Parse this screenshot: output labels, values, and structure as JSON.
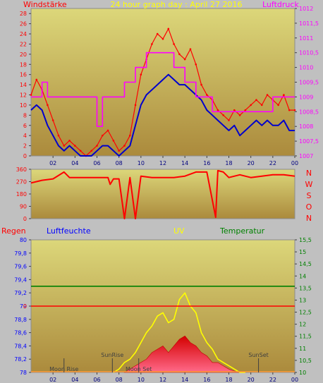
{
  "colors": {
    "background": "#c0c0c0",
    "plot_top": "#dcd77a",
    "plot_bottom": "#ab8a3c",
    "wind_speed": "#ff0000",
    "wind_avg": "#0000cc",
    "pressure": "#ff00ff",
    "direction": "#ff0000",
    "rain": "#ff0000",
    "humidity": "#0000ff",
    "uv": "#ffff00",
    "temperature": "#008000",
    "sun_marker": "#404040"
  },
  "chart_data": [
    {
      "type": "line",
      "id": "wind-pressure",
      "header": {
        "left_label": "Windstärke",
        "title": "24 hour graph day : April 27 2016",
        "right_label": "Luftdruck"
      },
      "x_ticks": [
        "02",
        "04",
        "06",
        "08",
        "10",
        "12",
        "14",
        "16",
        "18",
        "20",
        "22",
        "00"
      ],
      "x_range": [
        0,
        24
      ],
      "y_left": {
        "range": [
          0,
          29
        ],
        "ticks": [
          "0",
          "2",
          "4",
          "6",
          "8",
          "10",
          "12",
          "14",
          "16",
          "18",
          "20",
          "22",
          "24",
          "26",
          "28"
        ]
      },
      "y_right": {
        "range": [
          1007,
          1012
        ],
        "ticks": [
          "1007",
          "1007,5",
          "1008",
          "1008,5",
          "1009",
          "1009,5",
          "1010",
          "1010,5",
          "1011",
          "1011,5",
          "1012"
        ]
      },
      "series": [
        {
          "role": "wind_speed",
          "axis": "left",
          "x": [
            0,
            0.5,
            1,
            1.5,
            2,
            2.5,
            3,
            3.5,
            4,
            4.5,
            5,
            5.5,
            6,
            6.5,
            7,
            7.5,
            8,
            8.5,
            9,
            9.5,
            10,
            10.5,
            11,
            11.5,
            12,
            12.5,
            13,
            13.5,
            14,
            14.5,
            15,
            15.5,
            16,
            16.5,
            17,
            17.5,
            18,
            18.5,
            19,
            19.5,
            20,
            20.5,
            21,
            21.5,
            22,
            22.5,
            23,
            23.5,
            24
          ],
          "values": [
            12,
            15,
            13,
            10,
            7,
            4,
            2,
            3,
            2,
            1,
            0,
            1,
            2,
            4,
            5,
            3,
            1,
            2,
            4,
            10,
            16,
            19,
            22,
            24,
            23,
            25,
            22,
            20,
            19,
            21,
            18,
            14,
            12,
            11,
            9,
            8,
            7,
            9,
            8,
            9,
            10,
            11,
            10,
            12,
            11,
            10,
            12,
            9,
            9
          ]
        },
        {
          "role": "wind_avg",
          "axis": "left",
          "x": [
            0,
            0.5,
            1,
            1.5,
            2,
            2.5,
            3,
            3.5,
            4,
            4.5,
            5,
            5.5,
            6,
            6.5,
            7,
            7.5,
            8,
            8.5,
            9,
            9.5,
            10,
            10.5,
            11,
            11.5,
            12,
            12.5,
            13,
            13.5,
            14,
            14.5,
            15,
            15.5,
            16,
            16.5,
            17,
            17.5,
            18,
            18.5,
            19,
            19.5,
            20,
            20.5,
            21,
            21.5,
            22,
            22.5,
            23,
            23.5,
            24
          ],
          "values": [
            9,
            10,
            9,
            6,
            4,
            2,
            1,
            2,
            1,
            0,
            0,
            0,
            1,
            2,
            2,
            1,
            0,
            1,
            2,
            6,
            10,
            12,
            13,
            14,
            15,
            16,
            15,
            14,
            14,
            13,
            12,
            11,
            9,
            8,
            7,
            6,
            5,
            6,
            4,
            5,
            6,
            7,
            6,
            7,
            6,
            6,
            7,
            5,
            5
          ]
        },
        {
          "role": "pressure",
          "axis": "right",
          "x": [
            0,
            1,
            1,
            1.5,
            1.5,
            3,
            6,
            6,
            6.5,
            6.5,
            8.5,
            8.5,
            9.5,
            9.5,
            10.5,
            10.5,
            13,
            13,
            14,
            14,
            15,
            15,
            16.5,
            16.5,
            22,
            22,
            24
          ],
          "values": [
            1009,
            1009,
            1009.5,
            1009.5,
            1009,
            1009,
            1009,
            1008,
            1008,
            1009,
            1009,
            1009.5,
            1009.5,
            1010,
            1010,
            1010.5,
            1010.5,
            1010,
            1010,
            1009.5,
            1009.5,
            1009,
            1009,
            1008.5,
            1008.5,
            1009,
            1009
          ]
        }
      ]
    },
    {
      "type": "line",
      "id": "wind-direction",
      "x_range": [
        0,
        24
      ],
      "y_left": {
        "range": [
          0,
          360
        ],
        "ticks": [
          "0",
          "90",
          "180",
          "270",
          "360"
        ]
      },
      "compass": [
        "N",
        "W",
        "S",
        "O",
        "N"
      ],
      "series": [
        {
          "role": "direction",
          "x": [
            0,
            1,
            2,
            3,
            3.5,
            4,
            5,
            6,
            7,
            7.2,
            7.5,
            8,
            8.5,
            9,
            9.5,
            10,
            11,
            12,
            13,
            14,
            15,
            16,
            16.8,
            17,
            17.5,
            18,
            19,
            20,
            21,
            22,
            23,
            24
          ],
          "values": [
            260,
            280,
            290,
            340,
            300,
            300,
            300,
            300,
            300,
            250,
            290,
            290,
            0,
            300,
            0,
            310,
            300,
            300,
            300,
            310,
            340,
            340,
            10,
            350,
            340,
            300,
            320,
            300,
            310,
            320,
            320,
            310
          ]
        }
      ]
    },
    {
      "type": "area",
      "id": "rain-humidity-uv-temp",
      "header": {
        "rain": "Regen",
        "humidity": "Luftfeuchte",
        "uv": "UV",
        "temperature": "Temperatur"
      },
      "y_left": {
        "range": [
          78,
          80
        ],
        "ticks": [
          "78",
          "78,2",
          "78,4",
          "78,6",
          "78,8",
          "79",
          "79,2",
          "79,4",
          "79,6",
          "79,8",
          "80"
        ]
      },
      "y_right": {
        "range": [
          10,
          15.5
        ],
        "ticks": [
          "10",
          "10,5",
          "11",
          "11,5",
          "12",
          "12,5",
          "13",
          "13,5",
          "14",
          "14,5",
          "15",
          "15,5"
        ]
      },
      "rain_zero_label": "0",
      "rain_level": 79,
      "humidity_level": 79.3,
      "uv_zero": 78,
      "events": [
        {
          "label": "Moon Rise",
          "x": 3.0
        },
        {
          "label": "SunRise",
          "x": 7.4
        },
        {
          "label": "Moon Set",
          "x": 9.8
        },
        {
          "label": "SunSet",
          "x": 20.7
        }
      ],
      "x_ticks": [
        "02",
        "04",
        "06",
        "08",
        "10",
        "12",
        "14",
        "16",
        "18",
        "20",
        "22",
        "00"
      ],
      "series": [
        {
          "role": "uv",
          "x": [
            7.5,
            8,
            8.5,
            9,
            9.5,
            10,
            10.5,
            11,
            11.5,
            12,
            12.5,
            13,
            13.5,
            14,
            14.5,
            15,
            15.5,
            16,
            16.5,
            17,
            17.5,
            18,
            18.5,
            19,
            19.5
          ],
          "values": [
            78,
            78.05,
            78.15,
            78.2,
            78.3,
            78.45,
            78.6,
            78.7,
            78.85,
            78.9,
            78.75,
            78.8,
            79.1,
            79.2,
            79.0,
            78.9,
            78.6,
            78.45,
            78.35,
            78.2,
            78.15,
            78.1,
            78.05,
            78.0,
            78.0
          ]
        },
        {
          "role": "temperature_fill",
          "x": [
            8.5,
            9,
            9.5,
            10,
            10.5,
            11,
            11.5,
            12,
            12.5,
            13,
            13.5,
            14,
            14.5,
            15,
            15.5,
            16,
            16.5,
            17,
            17.5,
            18,
            18.5,
            19
          ],
          "values": [
            78,
            78.05,
            78.1,
            78.15,
            78.2,
            78.3,
            78.35,
            78.4,
            78.3,
            78.4,
            78.5,
            78.55,
            78.45,
            78.4,
            78.3,
            78.25,
            78.15,
            78.15,
            78.1,
            78.05,
            78.02,
            78
          ]
        }
      ]
    }
  ]
}
